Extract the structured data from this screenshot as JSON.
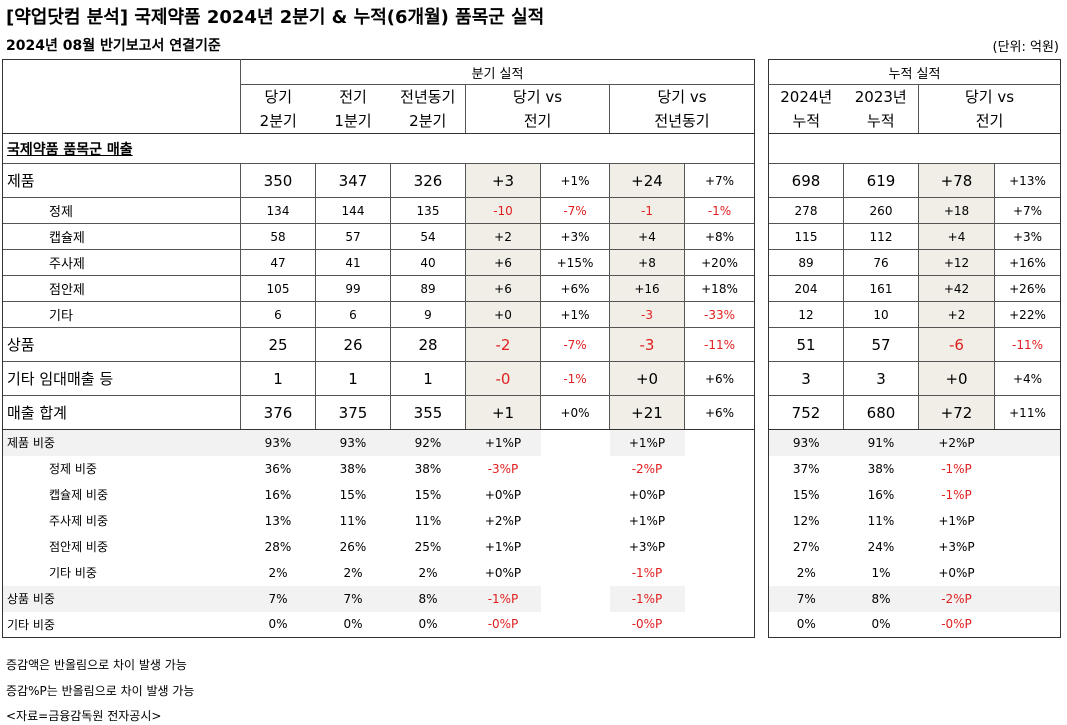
{
  "title": "[약업닷컴 분석] 국제약품 2024년 2분기 & 누적(6개월) 품목군 실적",
  "subtitle": "2024년 08월 반기보고서 연결기준",
  "unit": "(단위: 억원)",
  "colors": {
    "highlight": "#f0eee6",
    "gray_band": "#f2f2f2",
    "negative": "#e02020"
  },
  "left_header": {
    "group": "분기 실적",
    "cols": [
      "당기",
      "전기",
      "전년동기",
      "당기 vs",
      "당기 vs"
    ],
    "cols2": [
      "2분기",
      "1분기",
      "2분기",
      "전기",
      "전년동기"
    ]
  },
  "right_header": {
    "group": "누적 실적",
    "cols": [
      "2024년",
      "2023년",
      "당기 vs"
    ],
    "cols2": [
      "누적",
      "누적",
      "전기"
    ]
  },
  "section_label": "국제약품 품목군 매출",
  "sales_rows": [
    {
      "label": "제품",
      "q2": "350",
      "q1": "347",
      "py": "326",
      "dq": "+3",
      "dqp": "+1%",
      "dy": "+24",
      "dyp": "+7%",
      "c24": "698",
      "c23": "619",
      "dc": "+78",
      "dcp": "+13%"
    },
    {
      "label": "정제",
      "q2": "134",
      "q1": "144",
      "py": "135",
      "dq": "-10",
      "dqp": "-7%",
      "dy": "-1",
      "dyp": "-1%",
      "c24": "278",
      "c23": "260",
      "dc": "+18",
      "dcp": "+7%"
    },
    {
      "label": "캡슐제",
      "q2": "58",
      "q1": "57",
      "py": "54",
      "dq": "+2",
      "dqp": "+3%",
      "dy": "+4",
      "dyp": "+8%",
      "c24": "115",
      "c23": "112",
      "dc": "+4",
      "dcp": "+3%"
    },
    {
      "label": "주사제",
      "q2": "47",
      "q1": "41",
      "py": "40",
      "dq": "+6",
      "dqp": "+15%",
      "dy": "+8",
      "dyp": "+20%",
      "c24": "89",
      "c23": "76",
      "dc": "+12",
      "dcp": "+16%"
    },
    {
      "label": "점안제",
      "q2": "105",
      "q1": "99",
      "py": "89",
      "dq": "+6",
      "dqp": "+6%",
      "dy": "+16",
      "dyp": "+18%",
      "c24": "204",
      "c23": "161",
      "dc": "+42",
      "dcp": "+26%"
    },
    {
      "label": "기타",
      "q2": "6",
      "q1": "6",
      "py": "9",
      "dq": "+0",
      "dqp": "+1%",
      "dy": "-3",
      "dyp": "-33%",
      "c24": "12",
      "c23": "10",
      "dc": "+2",
      "dcp": "+22%"
    },
    {
      "label": "상품",
      "q2": "25",
      "q1": "26",
      "py": "28",
      "dq": "-2",
      "dqp": "-7%",
      "dy": "-3",
      "dyp": "-11%",
      "c24": "51",
      "c23": "57",
      "dc": "-6",
      "dcp": "-11%"
    },
    {
      "label": "기타  임대매출 등",
      "q2": "1",
      "q1": "1",
      "py": "1",
      "dq": "-0",
      "dqp": "-1%",
      "dy": "+0",
      "dyp": "+6%",
      "c24": "3",
      "c23": "3",
      "dc": "+0",
      "dcp": "+4%"
    },
    {
      "label": "매출 합계",
      "q2": "376",
      "q1": "375",
      "py": "355",
      "dq": "+1",
      "dqp": "+0%",
      "dy": "+21",
      "dyp": "+6%",
      "c24": "752",
      "c23": "680",
      "dc": "+72",
      "dcp": "+11%"
    }
  ],
  "ratio_rows": [
    {
      "label": "제품 비중",
      "q2": "93%",
      "q1": "93%",
      "py": "92%",
      "dq": "+1%P",
      "dy": "+1%P",
      "c24": "93%",
      "c23": "91%",
      "dc": "+2%P"
    },
    {
      "label": "정제 비중",
      "q2": "36%",
      "q1": "38%",
      "py": "38%",
      "dq": "-3%P",
      "dy": "-2%P",
      "c24": "37%",
      "c23": "38%",
      "dc": "-1%P"
    },
    {
      "label": "캡슐제 비중",
      "q2": "16%",
      "q1": "15%",
      "py": "15%",
      "dq": "+0%P",
      "dy": "+0%P",
      "c24": "15%",
      "c23": "16%",
      "dc": "-1%P"
    },
    {
      "label": "주사제 비중",
      "q2": "13%",
      "q1": "11%",
      "py": "11%",
      "dq": "+2%P",
      "dy": "+1%P",
      "c24": "12%",
      "c23": "11%",
      "dc": "+1%P"
    },
    {
      "label": "점안제 비중",
      "q2": "28%",
      "q1": "26%",
      "py": "25%",
      "dq": "+1%P",
      "dy": "+3%P",
      "c24": "27%",
      "c23": "24%",
      "dc": "+3%P"
    },
    {
      "label": "기타 비중",
      "q2": "2%",
      "q1": "2%",
      "py": "2%",
      "dq": "+0%P",
      "dy": "-1%P",
      "c24": "2%",
      "c23": "1%",
      "dc": "+0%P"
    },
    {
      "label": "상품 비중",
      "q2": "7%",
      "q1": "7%",
      "py": "8%",
      "dq": "-1%P",
      "dy": "-1%P",
      "c24": "7%",
      "c23": "8%",
      "dc": "-2%P"
    },
    {
      "label": "기타 비중",
      "q2": "0%",
      "q1": "0%",
      "py": "0%",
      "dq": "-0%P",
      "dy": "-0%P",
      "c24": "0%",
      "c23": "0%",
      "dc": "-0%P"
    }
  ],
  "notes": [
    "증감액은 반올림으로 차이 발생 가능",
    "증감%P는 반올림으로 차이 발생 가능",
    "<자료=금융감독원 전자공시>"
  ]
}
